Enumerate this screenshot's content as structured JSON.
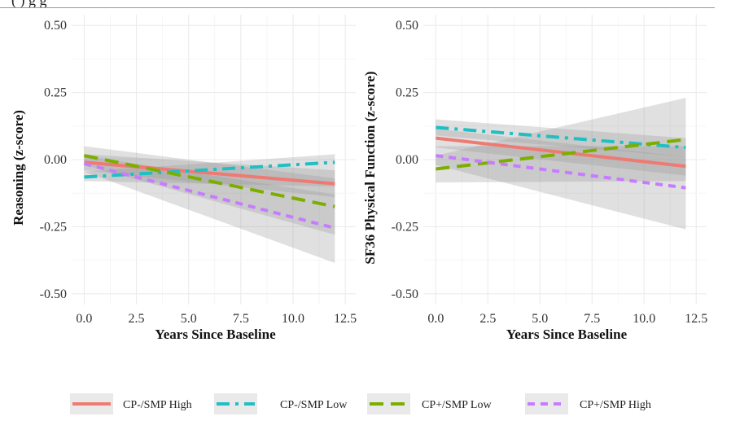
{
  "header_fragment": "(                    )    g     g",
  "chart_data": [
    {
      "type": "line",
      "title": "",
      "xlabel": "Years Since Baseline",
      "ylabel": "Reasoning (z-score)",
      "xlim": [
        -0.6,
        13.0
      ],
      "ylim": [
        -0.54,
        0.54
      ],
      "x_ticks": [
        "0.0",
        "2.5",
        "5.0",
        "7.5",
        "10.0",
        "12.5"
      ],
      "y_ticks": [
        "0.50",
        "0.25",
        "0.00",
        "-0.25",
        "-0.50"
      ],
      "grid": true,
      "series": [
        {
          "name": "CP-/SMP High",
          "color": "#ee7b73",
          "dash": "solid",
          "x": [
            0,
            12
          ],
          "y": [
            -0.01,
            -0.09
          ],
          "ci_lower": [
            -0.04,
            -0.14
          ],
          "ci_upper": [
            0.02,
            -0.04
          ]
        },
        {
          "name": "CP-/SMP Low",
          "color": "#1fbfc4",
          "dash": "dashdot",
          "x": [
            0,
            12
          ],
          "y": [
            -0.065,
            -0.01
          ],
          "ci_lower": [
            -0.08,
            -0.1
          ],
          "ci_upper": [
            -0.045,
            0.02
          ]
        },
        {
          "name": "CP+/SMP Low",
          "color": "#7cae00",
          "dash": "longdash",
          "x": [
            0,
            12
          ],
          "y": [
            0.015,
            -0.175
          ],
          "ci_lower": [
            -0.02,
            -0.28
          ],
          "ci_upper": [
            0.05,
            -0.07
          ]
        },
        {
          "name": "CP+/SMP High",
          "color": "#c77cff",
          "dash": "dashed",
          "x": [
            0,
            12
          ],
          "y": [
            -0.015,
            -0.255
          ],
          "ci_lower": [
            -0.045,
            -0.385
          ],
          "ci_upper": [
            0.015,
            -0.13
          ]
        }
      ]
    },
    {
      "type": "line",
      "title": "",
      "xlabel": "Years Since Baseline",
      "ylabel": "SF36 Physical Function (z-score)",
      "xlim": [
        -0.6,
        13.0
      ],
      "ylim": [
        -0.54,
        0.54
      ],
      "x_ticks": [
        "0.0",
        "2.5",
        "5.0",
        "7.5",
        "10.0",
        "12.5"
      ],
      "y_ticks": [
        "0.50",
        "0.25",
        "0.00",
        "-0.25",
        "-0.50"
      ],
      "grid": true,
      "series": [
        {
          "name": "CP-/SMP High",
          "color": "#ee7b73",
          "dash": "solid",
          "x": [
            0,
            12
          ],
          "y": [
            0.08,
            -0.025
          ],
          "ci_lower": [
            0.045,
            -0.06
          ],
          "ci_upper": [
            0.115,
            0.01
          ]
        },
        {
          "name": "CP-/SMP Low",
          "color": "#1fbfc4",
          "dash": "dashdot",
          "x": [
            0,
            12
          ],
          "y": [
            0.12,
            0.045
          ],
          "ci_lower": [
            0.09,
            0.01
          ],
          "ci_upper": [
            0.15,
            0.08
          ]
        },
        {
          "name": "CP+/SMP Low",
          "color": "#7cae00",
          "dash": "longdash",
          "x": [
            0,
            12
          ],
          "y": [
            -0.035,
            0.075
          ],
          "ci_lower": [
            -0.085,
            -0.08
          ],
          "ci_upper": [
            0.015,
            0.23
          ]
        },
        {
          "name": "CP+/SMP High",
          "color": "#c77cff",
          "dash": "dashed",
          "x": [
            0,
            12
          ],
          "y": [
            0.015,
            -0.105
          ],
          "ci_lower": [
            -0.02,
            -0.26
          ],
          "ci_upper": [
            0.05,
            0.05
          ]
        }
      ]
    }
  ],
  "legend": {
    "position": "bottom",
    "items": [
      {
        "label": "CP-/SMP High",
        "color": "#ee7b73",
        "dash": "solid"
      },
      {
        "label": "CP-/SMP Low",
        "color": "#1fbfc4",
        "dash": "dashdot"
      },
      {
        "label": "CP+/SMP Low",
        "color": "#7cae00",
        "dash": "longdash"
      },
      {
        "label": "CP+/SMP High",
        "color": "#c77cff",
        "dash": "dashed"
      }
    ]
  }
}
